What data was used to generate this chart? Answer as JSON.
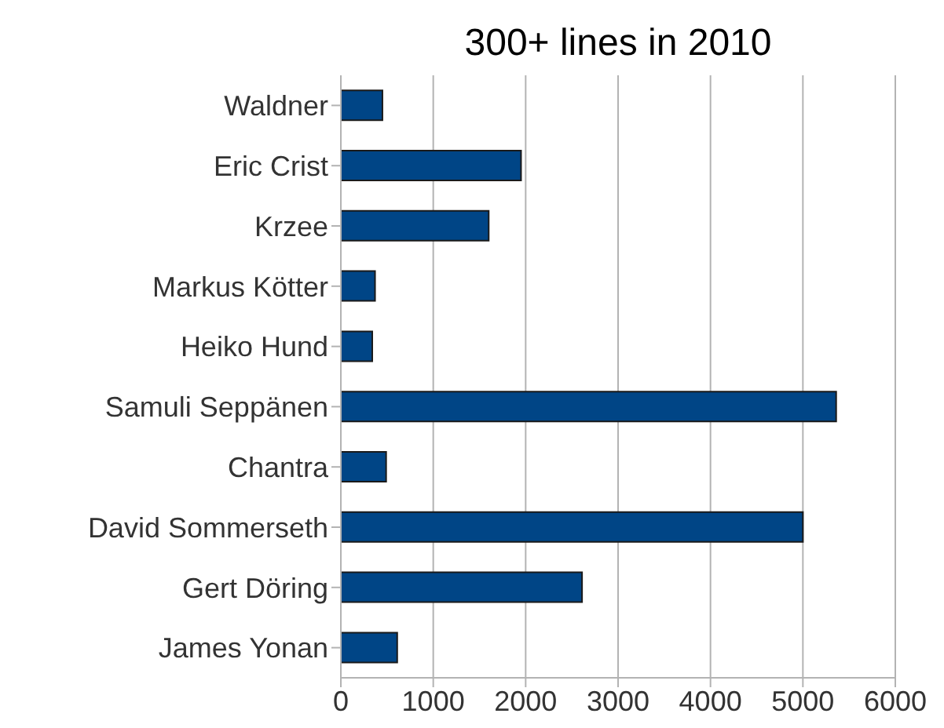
{
  "chart_data": {
    "type": "bar",
    "orientation": "horizontal",
    "title": "300+ lines in 2010",
    "categories": [
      "Waldner",
      "Eric Crist",
      "Krzee",
      "Markus Kötter",
      "Heiko Hund",
      "Samuli Seppänen",
      "Chantra",
      "David Sommerseth",
      "Gert Döring",
      "James Yonan"
    ],
    "values": [
      450,
      1950,
      1600,
      370,
      340,
      5360,
      490,
      5000,
      2610,
      610
    ],
    "color": "#004586",
    "xlim": [
      0,
      6000
    ],
    "xticks": [
      0,
      1000,
      2000,
      3000,
      4000,
      5000,
      6000
    ],
    "grid": "x"
  }
}
